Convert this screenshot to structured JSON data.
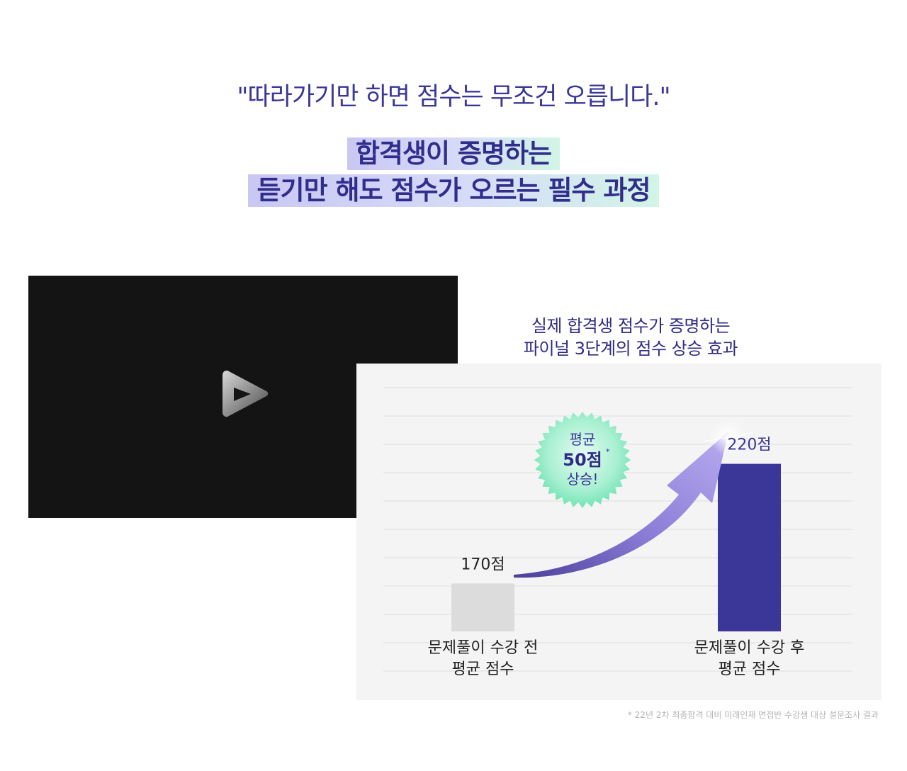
{
  "header": {
    "quote": "\"따라가기만 하면 점수는 무조건 오릅니다.\"",
    "headline_line1": "합격생이 증명하는",
    "headline_line2": "듣기만 해도 점수가 오르는 필수 과정"
  },
  "video": {
    "play_icon": "play-icon"
  },
  "chart_data": {
    "type": "bar",
    "title_line1": "실제 합격생 점수가 증명하는",
    "title_line2": "파이널 3단계의 점수 상승 효과",
    "categories": [
      [
        "문제풀이 수강 전",
        "평균 점수"
      ],
      [
        "문제풀이 수강 후",
        "평균 점수"
      ]
    ],
    "values": [
      170,
      220
    ],
    "value_labels": [
      "170점",
      "220점"
    ],
    "ylim": [
      150,
      240
    ],
    "grid": true,
    "colors": [
      "#dcdcdc",
      "#3a3799"
    ],
    "badge": {
      "line1": "평균",
      "line2": "50점",
      "marker": "*",
      "line3": "상승!"
    }
  },
  "footnote": "* 22년 2차 최종합격 대비 미래인재 면접반 수강생 대상 설문조사 결과",
  "colors": {
    "brand": "#3a3799",
    "before_bar": "#dcdcdc",
    "arrow": "#9b8fe0",
    "badge_green": "#6fe4b2"
  }
}
